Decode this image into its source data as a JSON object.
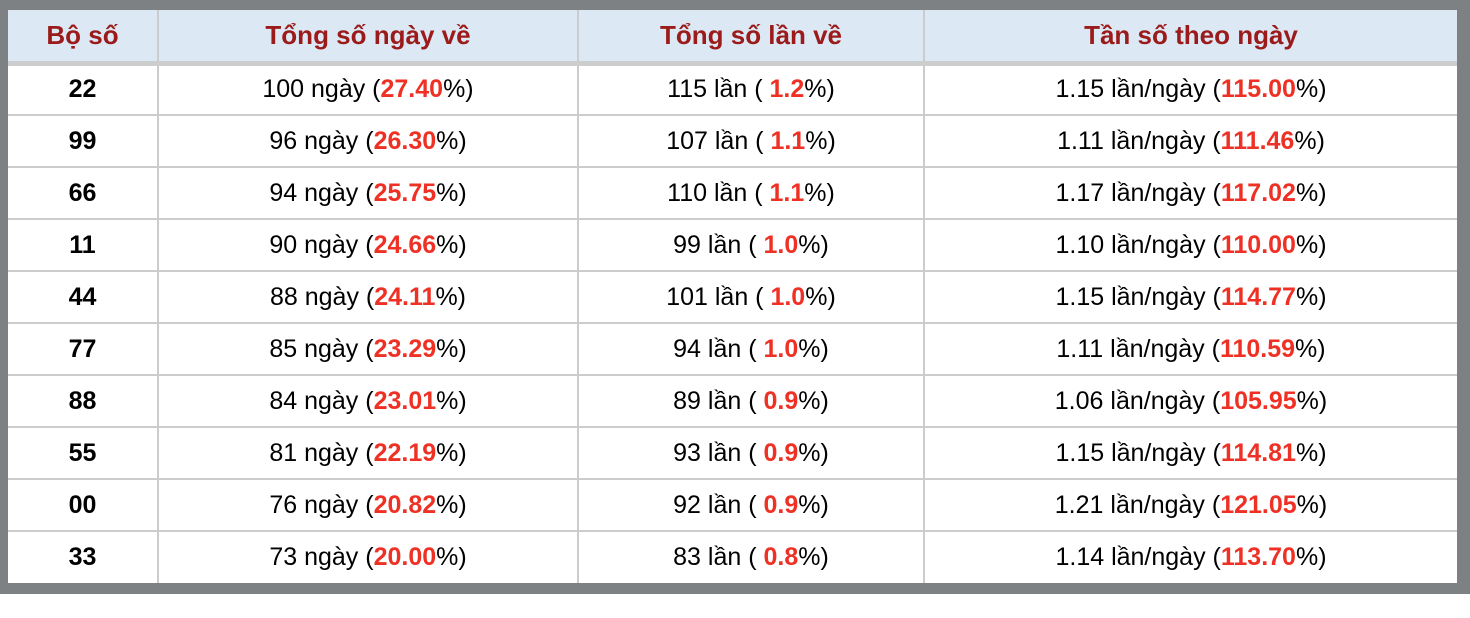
{
  "table": {
    "columns": [
      {
        "label": "Bộ số"
      },
      {
        "label": "Tổng số ngày về"
      },
      {
        "label": "Tổng số lần về"
      },
      {
        "label": "Tần số theo ngày"
      }
    ],
    "rows": [
      {
        "pair": "22",
        "days": {
          "pre": "100 ngày (",
          "hl": "27.40",
          "post": "%)"
        },
        "times": {
          "pre": "115 lần ( ",
          "hl": "1.2",
          "post": "%)"
        },
        "freq": {
          "pre": "1.15 lần/ngày (",
          "hl": "115.00",
          "post": "%)"
        }
      },
      {
        "pair": "99",
        "days": {
          "pre": "96 ngày (",
          "hl": "26.30",
          "post": "%)"
        },
        "times": {
          "pre": "107 lần ( ",
          "hl": "1.1",
          "post": "%)"
        },
        "freq": {
          "pre": "1.11 lần/ngày (",
          "hl": "111.46",
          "post": "%)"
        }
      },
      {
        "pair": "66",
        "days": {
          "pre": "94 ngày (",
          "hl": "25.75",
          "post": "%)"
        },
        "times": {
          "pre": "110 lần ( ",
          "hl": "1.1",
          "post": "%)"
        },
        "freq": {
          "pre": "1.17 lần/ngày (",
          "hl": "117.02",
          "post": "%)"
        }
      },
      {
        "pair": "11",
        "days": {
          "pre": "90 ngày (",
          "hl": "24.66",
          "post": "%)"
        },
        "times": {
          "pre": "99 lần ( ",
          "hl": "1.0",
          "post": "%)"
        },
        "freq": {
          "pre": "1.10 lần/ngày (",
          "hl": "110.00",
          "post": "%)"
        }
      },
      {
        "pair": "44",
        "days": {
          "pre": "88 ngày (",
          "hl": "24.11",
          "post": "%)"
        },
        "times": {
          "pre": "101 lần ( ",
          "hl": "1.0",
          "post": "%)"
        },
        "freq": {
          "pre": "1.15 lần/ngày (",
          "hl": "114.77",
          "post": "%)"
        }
      },
      {
        "pair": "77",
        "days": {
          "pre": "85 ngày (",
          "hl": "23.29",
          "post": "%)"
        },
        "times": {
          "pre": "94 lần ( ",
          "hl": "1.0",
          "post": "%)"
        },
        "freq": {
          "pre": "1.11 lần/ngày (",
          "hl": "110.59",
          "post": "%)"
        }
      },
      {
        "pair": "88",
        "days": {
          "pre": "84 ngày (",
          "hl": "23.01",
          "post": "%)"
        },
        "times": {
          "pre": "89 lần ( ",
          "hl": "0.9",
          "post": "%)"
        },
        "freq": {
          "pre": "1.06 lần/ngày (",
          "hl": "105.95",
          "post": "%)"
        }
      },
      {
        "pair": "55",
        "days": {
          "pre": "81 ngày (",
          "hl": "22.19",
          "post": "%)"
        },
        "times": {
          "pre": "93 lần ( ",
          "hl": "0.9",
          "post": "%)"
        },
        "freq": {
          "pre": "1.15 lần/ngày (",
          "hl": "114.81",
          "post": "%)"
        }
      },
      {
        "pair": "00",
        "days": {
          "pre": "76 ngày (",
          "hl": "20.82",
          "post": "%)"
        },
        "times": {
          "pre": "92 lần ( ",
          "hl": "0.9",
          "post": "%)"
        },
        "freq": {
          "pre": "1.21 lần/ngày (",
          "hl": "121.05",
          "post": "%)"
        }
      },
      {
        "pair": "33",
        "days": {
          "pre": "73 ngày (",
          "hl": "20.00",
          "post": "%)"
        },
        "times": {
          "pre": "83 lần ( ",
          "hl": "0.8",
          "post": "%)"
        },
        "freq": {
          "pre": "1.14 lần/ngày (",
          "hl": "113.70",
          "post": "%)"
        }
      }
    ]
  },
  "colors": {
    "header_bg": "#dce9f5",
    "header_text": "#9b1b1b",
    "highlight": "#ee3124",
    "grid": "#cccccc",
    "frame": "#7e8184"
  }
}
